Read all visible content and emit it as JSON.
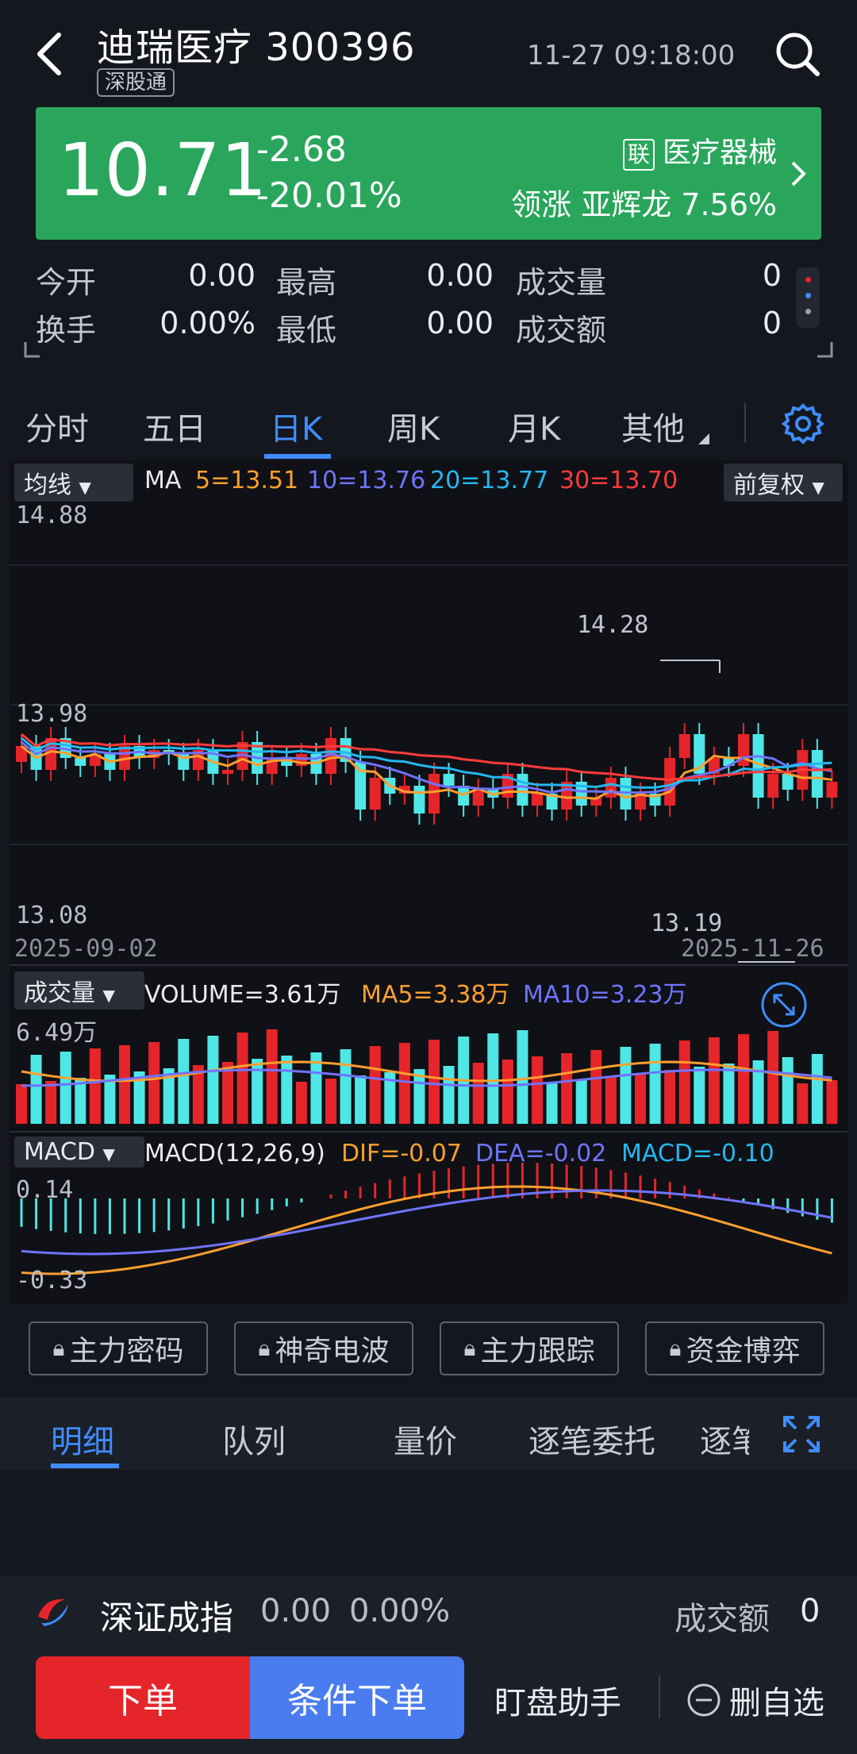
{
  "header": {
    "title": "迪瑞医疗 300396",
    "tag": "深股通",
    "datetime": "11-27 09:18:00"
  },
  "quote": {
    "price": "10.71",
    "change": "-2.68",
    "change_pct": "-20.01%",
    "sector_badge": "联",
    "sector": "医疗器械",
    "leader": "领涨  亚辉龙  7.56%",
    "card_color": "#29a65c"
  },
  "stats": {
    "open_label": "今开",
    "open": "0.00",
    "high_label": "最高",
    "high": "0.00",
    "vol_label": "成交量",
    "vol": "0",
    "turnover_label": "换手",
    "turnover": "0.00%",
    "low_label": "最低",
    "low": "0.00",
    "amount_label": "成交额",
    "amount": "0"
  },
  "tabs": [
    "分时",
    "五日",
    "日K",
    "周K",
    "月K",
    "其他"
  ],
  "active_tab": "日K",
  "kline": {
    "indicator_select": "均线",
    "ma_label": "MA",
    "ma5": "5=13.51",
    "ma10": "10=13.76",
    "ma20": "20=13.77",
    "ma30": "30=13.70",
    "adjust": "前复权",
    "y_top": "14.88",
    "y_mid": "13.98",
    "y_bottom": "13.08",
    "high_mark": "14.28",
    "low_mark": "13.19",
    "date_start": "2025-09-02",
    "date_end": "2025-11-26",
    "colors": {
      "up": "#e5252a",
      "down": "#4fe6e6",
      "ma5": "#ff9f2e",
      "ma10": "#6f74ff",
      "ma20": "#25b7f0",
      "ma30": "#ff3b3b"
    }
  },
  "volume": {
    "select": "成交量",
    "volume": "VOLUME=3.61万",
    "ma5": "MA5=3.38万",
    "ma10": "MA10=3.23万",
    "y_top": "6.49万"
  },
  "macd": {
    "select": "MACD",
    "params": "MACD(12,26,9)",
    "dif": "DIF=-0.07",
    "dea": "DEA=-0.02",
    "macd": "MACD=-0.10",
    "y_top": "0.14",
    "y_bottom": "-0.33"
  },
  "function_buttons": [
    "主力密码",
    "神奇电波",
    "主力跟踪",
    "资金博弈"
  ],
  "bottom_tabs": [
    "明细",
    "队列",
    "量价",
    "逐笔委托",
    "逐笔"
  ],
  "index_bar": {
    "name": "深证成指",
    "value": "0.00",
    "pct": "0.00%",
    "amount_label": "成交额",
    "amount": "0"
  },
  "actions": {
    "order": "下单",
    "conditional_order": "条件下单",
    "watch_helper": "盯盘助手",
    "remove_watch": "删自选"
  }
}
